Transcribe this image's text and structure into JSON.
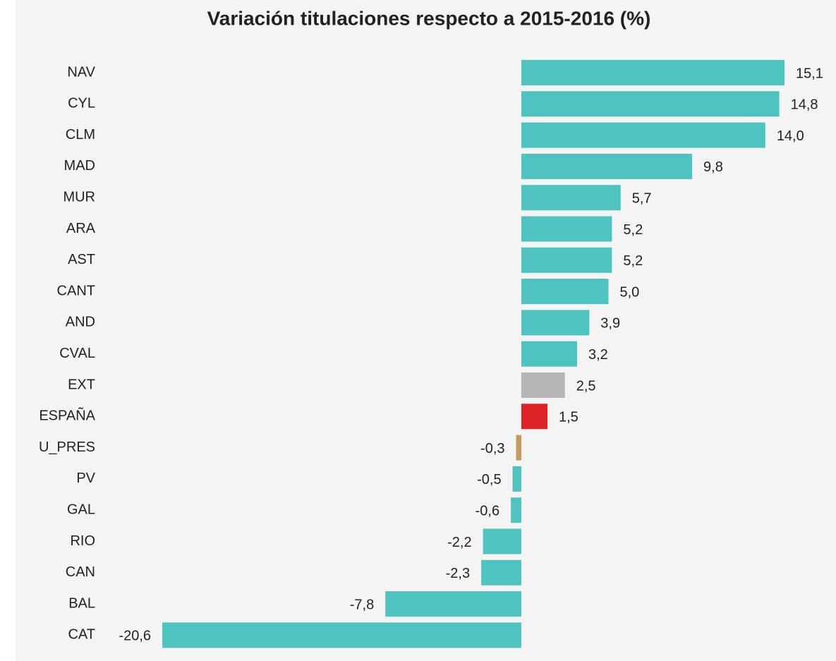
{
  "chart_data": {
    "type": "bar",
    "orientation": "horizontal",
    "title": "Variación titulaciones respecto a 2015-2016 (%)",
    "categories": [
      "NAV",
      "CYL",
      "CLM",
      "MAD",
      "MUR",
      "ARA",
      "AST",
      "CANT",
      "AND",
      "CVAL",
      "EXT",
      "ESPAÑA",
      "U_PRES",
      "PV",
      "GAL",
      "RIO",
      "CAN",
      "BAL",
      "CAT"
    ],
    "values": [
      15.1,
      14.8,
      14.0,
      9.8,
      5.7,
      5.2,
      5.2,
      5.0,
      3.9,
      3.2,
      2.5,
      1.5,
      -0.3,
      -0.5,
      -0.6,
      -2.2,
      -2.3,
      -7.8,
      -20.6
    ],
    "value_labels": [
      "15,1",
      "14,8",
      "14,0",
      "9,8",
      "5,7",
      "5,2",
      "5,2",
      "5,0",
      "3,9",
      "3,2",
      "2,5",
      "1,5",
      "-0,3",
      "-0,5",
      "-0,6",
      "-2,2",
      "-2,3",
      "-7,8",
      "-20,6"
    ],
    "colors": [
      "#4fc3bf",
      "#4fc3bf",
      "#4fc3bf",
      "#4fc3bf",
      "#4fc3bf",
      "#4fc3bf",
      "#4fc3bf",
      "#4fc3bf",
      "#4fc3bf",
      "#4fc3bf",
      "#b5b5b5",
      "#dc2127",
      "#c49a5e",
      "#4fc3bf",
      "#4fc3bf",
      "#4fc3bf",
      "#4fc3bf",
      "#4fc3bf",
      "#4fc3bf"
    ]
  }
}
